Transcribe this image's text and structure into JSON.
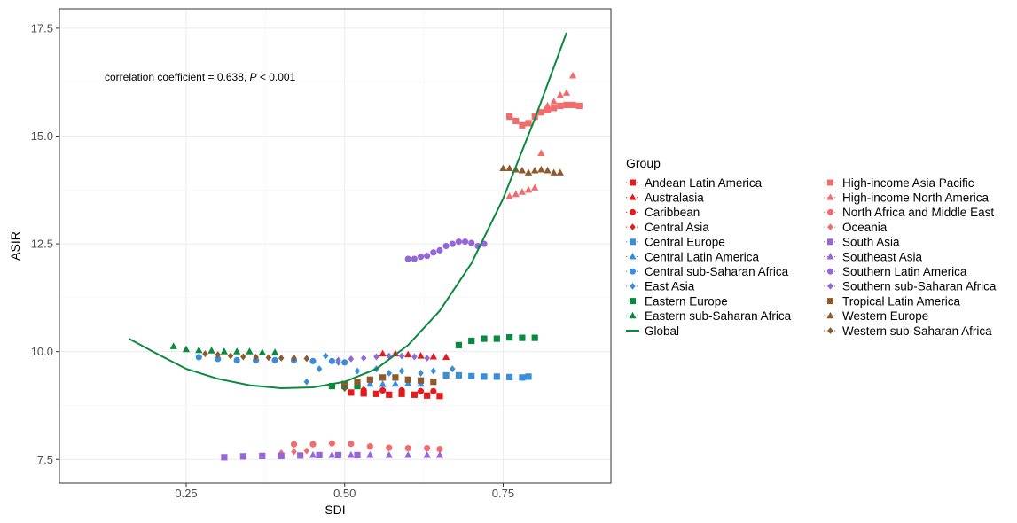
{
  "chart_data": {
    "type": "scatter",
    "xlabel": "SDI",
    "ylabel": "ASIR",
    "xlim": [
      0.05,
      0.92
    ],
    "ylim": [
      6.95,
      17.95
    ],
    "x_ticks": [
      0.25,
      0.5,
      0.75
    ],
    "x_tick_labels": [
      "0.25",
      "0.50",
      "0.75"
    ],
    "y_ticks": [
      7.5,
      10.0,
      12.5,
      15.0,
      17.5
    ],
    "y_tick_labels": [
      "7.5",
      "10.0",
      "12.5",
      "15.0",
      "17.5"
    ],
    "grid": true,
    "annotation": {
      "prefix": "correlation coefficient = 0.638, ",
      "p_symbol": "P",
      "suffix": " < 0.001"
    },
    "legend": {
      "title": "Group",
      "position": "right",
      "columns": 2
    },
    "series": [
      {
        "name": "Andean Latin America",
        "color": "#E41A1C",
        "marker": "square",
        "x": [
          0.51,
          0.53,
          0.55,
          0.57,
          0.59,
          0.61,
          0.63,
          0.65
        ],
        "y": [
          9.05,
          9.03,
          9.02,
          9.0,
          9.02,
          9.0,
          8.98,
          8.97
        ]
      },
      {
        "name": "Australasia",
        "color": "#E41A1C",
        "marker": "triangle",
        "x": [
          0.56,
          0.58,
          0.6,
          0.62,
          0.64,
          0.66
        ],
        "y": [
          9.95,
          9.95,
          9.93,
          9.9,
          9.88,
          9.87
        ]
      },
      {
        "name": "Caribbean",
        "color": "#E41A1C",
        "marker": "circle",
        "x": [
          0.53,
          0.56,
          0.59,
          0.62,
          0.64
        ],
        "y": [
          9.1,
          9.1,
          9.1,
          9.08,
          9.08
        ]
      },
      {
        "name": "Central Asia",
        "color": "#E41A1C",
        "marker": "diamond",
        "x": [
          0.5,
          0.53,
          0.56,
          0.59,
          0.62
        ],
        "y": [
          9.15,
          9.12,
          9.1,
          9.1,
          9.08
        ]
      },
      {
        "name": "Central Europe",
        "color": "#3C8DD8",
        "marker": "square",
        "x": [
          0.66,
          0.68,
          0.7,
          0.72,
          0.74,
          0.76,
          0.78,
          0.79
        ],
        "y": [
          9.45,
          9.45,
          9.43,
          9.42,
          9.42,
          9.41,
          9.4,
          9.42
        ]
      },
      {
        "name": "Central Latin America",
        "color": "#3C8DD8",
        "marker": "triangle",
        "x": [
          0.52,
          0.54,
          0.56,
          0.58,
          0.6,
          0.62
        ],
        "y": [
          9.25,
          9.25,
          9.24,
          9.25,
          9.26,
          9.25
        ]
      },
      {
        "name": "Central sub-Saharan Africa",
        "color": "#3C8DD8",
        "marker": "circle",
        "x": [
          0.27,
          0.3,
          0.33,
          0.36,
          0.39,
          0.42,
          0.45,
          0.48,
          0.5
        ],
        "y": [
          9.87,
          9.83,
          9.8,
          9.8,
          9.8,
          9.8,
          9.78,
          9.78,
          9.75
        ]
      },
      {
        "name": "East Asia",
        "color": "#3C8DD8",
        "marker": "diamond",
        "x": [
          0.44,
          0.46,
          0.47,
          0.49,
          0.52,
          0.55,
          0.57,
          0.59,
          0.62,
          0.64,
          0.67
        ],
        "y": [
          9.3,
          9.6,
          9.9,
          9.75,
          9.55,
          9.6,
          9.5,
          9.55,
          9.5,
          9.55,
          9.6
        ]
      },
      {
        "name": "Eastern Europe",
        "color": "#0A8A3E",
        "marker": "square",
        "x": [
          0.48,
          0.5,
          0.52,
          0.68,
          0.7,
          0.72,
          0.74,
          0.76,
          0.78,
          0.8
        ],
        "y": [
          9.2,
          9.2,
          9.2,
          10.15,
          10.25,
          10.3,
          10.3,
          10.33,
          10.32,
          10.32
        ]
      },
      {
        "name": "Eastern sub-Saharan Africa",
        "color": "#0A8A3E",
        "marker": "triangle",
        "x": [
          0.23,
          0.25,
          0.27,
          0.29,
          0.31,
          0.33,
          0.35,
          0.37,
          0.39
        ],
        "y": [
          10.12,
          10.05,
          10.03,
          10.02,
          10.0,
          10.0,
          10.0,
          9.98,
          9.98
        ]
      },
      {
        "name": "High-income Asia Pacific",
        "color": "#F36C6C",
        "marker": "square",
        "x": [
          0.76,
          0.77,
          0.78,
          0.79,
          0.8,
          0.81,
          0.82,
          0.83,
          0.84,
          0.85,
          0.86,
          0.87
        ],
        "y": [
          15.45,
          15.35,
          15.25,
          15.3,
          15.45,
          15.55,
          15.6,
          15.65,
          15.7,
          15.72,
          15.72,
          15.7
        ]
      },
      {
        "name": "High-income North America",
        "color": "#F36C6C",
        "marker": "triangle",
        "x": [
          0.76,
          0.77,
          0.78,
          0.79,
          0.8,
          0.81,
          0.82,
          0.83,
          0.84,
          0.85,
          0.86
        ],
        "y": [
          13.6,
          13.65,
          13.7,
          13.75,
          13.8,
          14.6,
          15.7,
          15.8,
          15.95,
          16.0,
          16.4
        ]
      },
      {
        "name": "North Africa and Middle East",
        "color": "#F36C6C",
        "marker": "circle",
        "x": [
          0.42,
          0.45,
          0.48,
          0.51,
          0.54,
          0.57,
          0.6,
          0.63,
          0.65
        ],
        "y": [
          7.85,
          7.85,
          7.87,
          7.86,
          7.8,
          7.77,
          7.76,
          7.76,
          7.74
        ]
      },
      {
        "name": "Oceania",
        "color": "#F36C6C",
        "marker": "diamond",
        "x": [
          0.4,
          0.42,
          0.44
        ],
        "y": [
          7.65,
          7.68,
          7.7
        ]
      },
      {
        "name": "South Asia",
        "color": "#9467D9",
        "marker": "square",
        "x": [
          0.31,
          0.34,
          0.37,
          0.4,
          0.43,
          0.46,
          0.49,
          0.52
        ],
        "y": [
          7.55,
          7.57,
          7.58,
          7.58,
          7.59,
          7.6,
          7.6,
          7.6
        ]
      },
      {
        "name": "Southeast Asia",
        "color": "#9467D9",
        "marker": "triangle",
        "x": [
          0.45,
          0.48,
          0.51,
          0.54,
          0.57,
          0.6,
          0.63,
          0.65
        ],
        "y": [
          7.6,
          7.6,
          7.6,
          7.6,
          7.6,
          7.6,
          7.6,
          7.6
        ]
      },
      {
        "name": "Southern Latin America",
        "color": "#9467D9",
        "marker": "circle",
        "x": [
          0.6,
          0.61,
          0.62,
          0.63,
          0.64,
          0.65,
          0.66,
          0.67,
          0.68,
          0.69,
          0.7,
          0.71,
          0.72
        ],
        "y": [
          12.15,
          12.15,
          12.2,
          12.22,
          12.3,
          12.35,
          12.45,
          12.5,
          12.55,
          12.55,
          12.52,
          12.45,
          12.5
        ]
      },
      {
        "name": "Southern sub-Saharan Africa",
        "color": "#9467D9",
        "marker": "diamond",
        "x": [
          0.49,
          0.51,
          0.53,
          0.55,
          0.57,
          0.59,
          0.61,
          0.63
        ],
        "y": [
          9.8,
          9.83,
          9.85,
          9.88,
          9.9,
          9.9,
          9.88,
          9.85
        ]
      },
      {
        "name": "Tropical Latin America",
        "color": "#8C5A2B",
        "marker": "square",
        "x": [
          0.5,
          0.52,
          0.54,
          0.56,
          0.58,
          0.6,
          0.62,
          0.64
        ],
        "y": [
          9.25,
          9.3,
          9.35,
          9.4,
          9.4,
          9.35,
          9.33,
          9.3
        ]
      },
      {
        "name": "Western Europe",
        "color": "#8C5A2B",
        "marker": "triangle",
        "x": [
          0.75,
          0.76,
          0.77,
          0.78,
          0.79,
          0.8,
          0.81,
          0.82,
          0.83,
          0.84
        ],
        "y": [
          14.25,
          14.25,
          14.22,
          14.2,
          14.15,
          14.2,
          14.22,
          14.2,
          14.15,
          14.15
        ]
      },
      {
        "name": "Western sub-Saharan Africa",
        "color": "#8C5A2B",
        "marker": "diamond",
        "x": [
          0.28,
          0.3,
          0.32,
          0.34,
          0.36,
          0.38,
          0.4,
          0.42,
          0.44
        ],
        "y": [
          9.95,
          9.93,
          9.9,
          9.88,
          9.87,
          9.86,
          9.85,
          9.85,
          9.84
        ]
      },
      {
        "name": "Global",
        "color": "#0A8A3E",
        "marker": "line",
        "x": [
          0.16,
          0.2,
          0.25,
          0.3,
          0.35,
          0.4,
          0.45,
          0.5,
          0.55,
          0.6,
          0.65,
          0.7,
          0.75,
          0.8,
          0.85
        ],
        "y": [
          10.3,
          9.98,
          9.6,
          9.37,
          9.22,
          9.15,
          9.17,
          9.3,
          9.6,
          10.15,
          10.95,
          12.05,
          13.55,
          15.4,
          17.4
        ]
      }
    ]
  }
}
